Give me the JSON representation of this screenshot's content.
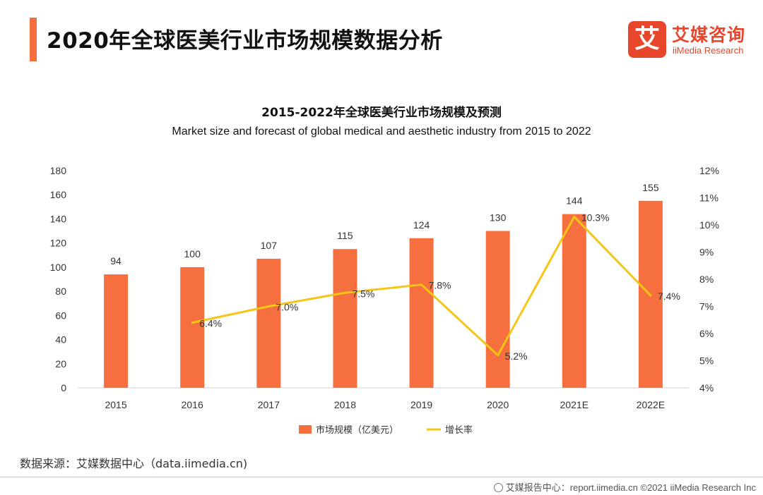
{
  "header": {
    "title": "2020年全球医美行业市场规模数据分析",
    "accent_color": "#f5703e"
  },
  "logo": {
    "mark": "艾",
    "name_cn": "艾媒咨询",
    "name_en": "iiMedia Research",
    "color": "#e8462a"
  },
  "source": "数据来源：艾媒数据中心（data.iimedia.cn)",
  "footer": {
    "icon": "globe-icon",
    "text": "艾媒报告中心：report.iimedia.cn  ©2021  iiMedia Research  Inc"
  },
  "chart_data": {
    "type": "bar",
    "title": "2015-2022年全球医美行业市场规模及预测",
    "subtitle": "Market size and forecast of global medical and aesthetic industry from 2015 to 2022",
    "categories": [
      "2015",
      "2016",
      "2017",
      "2018",
      "2019",
      "2020",
      "2021E",
      "2022E"
    ],
    "series": [
      {
        "name": "市场规模（亿美元）",
        "type": "bar",
        "axis": "left",
        "color": "#f5703e",
        "values": [
          94,
          100,
          107,
          115,
          124,
          130,
          144,
          155
        ],
        "labels": [
          "94",
          "100",
          "107",
          "115",
          "124",
          "130",
          "144",
          "155"
        ]
      },
      {
        "name": "增长率",
        "type": "line",
        "axis": "right",
        "color": "#f5c518",
        "values": [
          null,
          6.4,
          7.0,
          7.5,
          7.8,
          5.2,
          10.3,
          7.4
        ],
        "labels": [
          "",
          "6.4%",
          "7.0%",
          "7.5%",
          "7.8%",
          "5.2%",
          "10.3%",
          "7.4%"
        ]
      }
    ],
    "left_axis": {
      "ylim": [
        0,
        180
      ],
      "ticks": [
        "0",
        "20",
        "40",
        "60",
        "80",
        "100",
        "120",
        "140",
        "160",
        "180"
      ]
    },
    "right_axis": {
      "ylim": [
        4,
        12
      ],
      "ticks": [
        "4%",
        "5%",
        "6%",
        "7%",
        "8%",
        "9%",
        "10%",
        "11%",
        "12%"
      ]
    },
    "grid": false,
    "legend_position": "bottom"
  }
}
